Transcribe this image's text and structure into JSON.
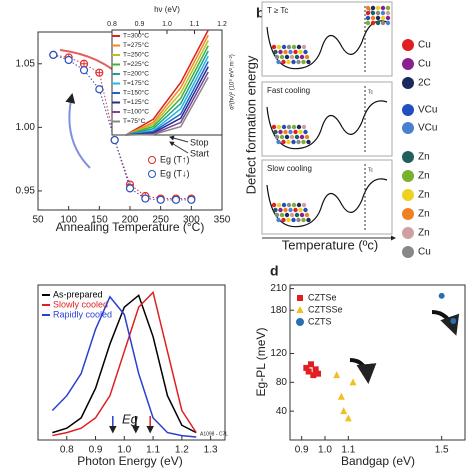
{
  "chart_data": [
    {
      "type": "scatter",
      "xlabel": "Annealing Temperature (°C)",
      "x": [
        75,
        100,
        125,
        150,
        175,
        200,
        225,
        250,
        275,
        300
      ],
      "xlim": [
        50,
        350
      ],
      "xticks": [
        50,
        100,
        150,
        200,
        250,
        300,
        350
      ],
      "ylim": [
        0.935,
        1.075
      ],
      "yticks": [
        0.95,
        {
          "value": 1.0,
          "label": "1.00"
        },
        1.05
      ],
      "series": [
        {
          "name": "Eg (T↑)",
          "color": "#e03030",
          "marker": "circle-plus",
          "line": "dotted",
          "values": [
            1.057,
            1.055,
            1.05,
            1.043,
            0.99,
            0.955,
            0.946,
            0.944,
            0.944,
            0.944
          ]
        },
        {
          "name": "Eg (T↓)",
          "color": "#2a4fc0",
          "marker": "circle",
          "line": "dotted",
          "values": [
            1.057,
            1.053,
            1.045,
            1.03,
            0.99,
            0.952,
            0.944,
            0.943,
            0.943,
            0.943
          ]
        }
      ],
      "annotations": [
        "Stop",
        "Start"
      ]
    },
    {
      "type": "line",
      "xlabel": "hν (eV)",
      "ylabel": "α²(hν)² (10⁹ eV².m⁻²)",
      "x": [
        0.85,
        0.95,
        1.05,
        1.15
      ],
      "xlim": [
        0.8,
        1.2
      ],
      "xticks": [
        0.8,
        0.9,
        {
          "value": 1.0,
          "label": "1.0"
        },
        1.1,
        1.2
      ],
      "ylim": [
        0,
        10
      ],
      "series": [
        {
          "name": "T=300°C",
          "color": "#e02020",
          "values": [
            0,
            1.5,
            5,
            10
          ]
        },
        {
          "name": "T=275°C",
          "color": "#f08a20",
          "values": [
            0,
            1.2,
            4.5,
            9.5
          ]
        },
        {
          "name": "T=250°C",
          "color": "#b8c020",
          "values": [
            0,
            1.0,
            4,
            9
          ]
        },
        {
          "name": "T=225°C",
          "color": "#40b040",
          "values": [
            0,
            0.8,
            3.5,
            8.5
          ]
        },
        {
          "name": "T=200°C",
          "color": "#20a090",
          "values": [
            0,
            0.6,
            3,
            8
          ]
        },
        {
          "name": "T=175°C",
          "color": "#20b8e0",
          "values": [
            0,
            0.4,
            2.5,
            7.5
          ]
        },
        {
          "name": "T=150°C",
          "color": "#2060d0",
          "values": [
            0,
            0.3,
            2,
            7
          ]
        },
        {
          "name": "T=125°C",
          "color": "#20308a",
          "values": [
            0,
            0.2,
            1.6,
            6.5
          ]
        },
        {
          "name": "T=100°C",
          "color": "#8040a0",
          "values": [
            0,
            0.1,
            1.2,
            6
          ]
        },
        {
          "name": "T=75°C",
          "color": "#888888",
          "values": [
            0,
            0.05,
            0.8,
            5.5
          ]
        }
      ]
    },
    {
      "type": "line",
      "xlabel": "Photon Energy (eV)",
      "x": [
        0.75,
        0.8,
        0.85,
        0.9,
        0.95,
        1.0,
        1.05,
        1.1,
        1.15,
        1.2,
        1.25
      ],
      "xlim": [
        0.7,
        1.35
      ],
      "xticks": [
        0.8,
        0.9,
        {
          "value": 1.0,
          "label": "1.0"
        },
        1.1,
        1.2,
        1.3
      ],
      "ylim": [
        0,
        1.05
      ],
      "series": [
        {
          "name": "As-prepared",
          "color": "#000000",
          "values": [
            0.05,
            0.08,
            0.15,
            0.35,
            0.65,
            0.9,
            0.98,
            0.7,
            0.3,
            0.1,
            0.05
          ]
        },
        {
          "name": "Slowly cooled",
          "color": "#e02020",
          "values": [
            0.03,
            0.05,
            0.08,
            0.15,
            0.3,
            0.6,
            0.9,
            1.0,
            0.6,
            0.2,
            0.05
          ]
        },
        {
          "name": "Rapidly cooled",
          "color": "#2a3fd0",
          "values": [
            0.2,
            0.3,
            0.45,
            0.75,
            0.97,
            0.85,
            0.45,
            0.15,
            0.05,
            0.03,
            0.02
          ]
        }
      ],
      "arrows": [
        {
          "x": 0.96,
          "color": "#2a3fd0"
        },
        {
          "x": 1.04,
          "color": "#000000"
        },
        {
          "x": 1.09,
          "color": "#e02020"
        }
      ],
      "annotations": [
        "Eg",
        "A1098 - C7L"
      ]
    },
    {
      "type": "scatter",
      "label": "d",
      "xlabel": "Bandgap (eV)",
      "ylabel": "Eg-PL (meV)",
      "xlim": [
        0.85,
        1.6
      ],
      "xticks": [
        0.9,
        {
          "value": 1.0,
          "label": "1.0"
        },
        1.1,
        1.5
      ],
      "ylim": [
        0,
        215
      ],
      "yticks": [
        40,
        80,
        120,
        180,
        210
      ],
      "series": [
        {
          "name": "CZTSe",
          "color": "#e02020",
          "marker": "square",
          "x": [
            0.92,
            0.93,
            0.94,
            0.95,
            0.96,
            0.97
          ],
          "values": [
            100,
            95,
            105,
            90,
            98,
            92
          ]
        },
        {
          "name": "CZTSSe",
          "color": "#f0c020",
          "marker": "triangle",
          "x": [
            1.05,
            1.07,
            1.08,
            1.1,
            1.12
          ],
          "values": [
            90,
            60,
            40,
            30,
            80
          ]
        },
        {
          "name": "CZTS",
          "color": "#2a70b0",
          "marker": "circle",
          "x": [
            1.5,
            1.55
          ],
          "values": [
            200,
            165
          ]
        }
      ]
    }
  ],
  "schematic": {
    "label": "b",
    "ylabel": "Defect formation energy",
    "xlabel": "Temperature (ºc)",
    "panels": [
      "T ≥ Tc",
      "Fast cooling",
      "Slow cooling"
    ],
    "tc": "Tc",
    "legend": [
      {
        "label": "Cu",
        "color": "#e02020"
      },
      {
        "label": "Cu",
        "color": "#8a2090"
      },
      {
        "label": "2C",
        "color": "#1a2a60"
      },
      {
        "label": "VCu",
        "color": "#2050c0"
      },
      {
        "label": "VCu",
        "color": "#4a80d0"
      },
      {
        "label": "Zn",
        "color": "#20605a"
      },
      {
        "label": "Zn",
        "color": "#7ab030"
      },
      {
        "label": "Zn",
        "color": "#f0d020"
      },
      {
        "label": "Zn",
        "color": "#f08020"
      },
      {
        "label": "Zn",
        "color": "#d0a0a0"
      },
      {
        "label": "Cu",
        "color": "#888888"
      }
    ]
  }
}
